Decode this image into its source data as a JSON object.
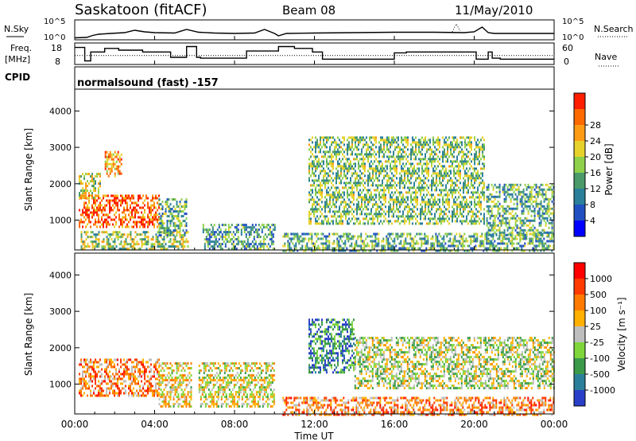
{
  "header": {
    "station": "Saskatoon (fitACF)",
    "beam": "Beam 08",
    "date": "11/May/2010",
    "cpid_label": "CPID",
    "cpid_value": "normalsound (fast) -157"
  },
  "chart_data": [
    {
      "name": "noise-panel",
      "type": "line",
      "left_label": "N.Sky",
      "right_label": "N.Search",
      "left_ticks": [
        "10^5",
        "10^0"
      ],
      "right_ticks": [
        "10^5",
        "10^0"
      ],
      "series": [
        {
          "name": "N.Sky",
          "style": "solid",
          "x": [
            0.0,
            0.6,
            0.9,
            1.2,
            1.8,
            2.5,
            3.0,
            3.5,
            4.0,
            5.0,
            5.6,
            6.2,
            7.0,
            8.0,
            9.0,
            9.5,
            10.0,
            10.2,
            10.6,
            12.0,
            14.0,
            16.0,
            18.0,
            19.5,
            20.0,
            20.4,
            20.7,
            21.0,
            22.0,
            24.0
          ],
          "y": [
            0.5,
            0.6,
            1.1,
            1.4,
            1.6,
            1.8,
            2.4,
            2.0,
            1.8,
            1.7,
            2.6,
            1.9,
            1.7,
            1.6,
            1.7,
            2.6,
            1.6,
            1.0,
            1.6,
            1.7,
            1.8,
            1.9,
            1.9,
            1.8,
            2.0,
            3.2,
            1.8,
            1.6,
            1.6,
            1.6
          ]
        },
        {
          "name": "N.Search",
          "style": "dotted",
          "x": [
            18.9,
            19.1,
            19.3
          ],
          "y": [
            2.0,
            4.0,
            2.2
          ]
        }
      ]
    },
    {
      "name": "frequency-panel",
      "type": "line",
      "left_label": "Freq.",
      "left_unit": "[MHz]",
      "right_label": "Nave",
      "left_ticks": [
        "18",
        "8"
      ],
      "right_ticks": [
        "60",
        "0"
      ],
      "ylim": [
        8,
        18
      ],
      "series": [
        {
          "name": "Freq",
          "style": "solid",
          "x": [
            0.0,
            0.5,
            0.5,
            0.8,
            0.8,
            1.5,
            1.5,
            2.2,
            2.2,
            3.4,
            3.4,
            4.8,
            4.8,
            5.6,
            5.6,
            6.1,
            6.1,
            6.3,
            6.3,
            8.6,
            8.6,
            10.2,
            10.2,
            11.0,
            11.0,
            11.9,
            11.9,
            12.4,
            12.4,
            16.0,
            16.0,
            16.6,
            16.6,
            20.1,
            20.1,
            20.7,
            20.7,
            20.9,
            20.9,
            21.3,
            21.3,
            24.0
          ],
          "y": [
            16.5,
            16.5,
            9.0,
            9.0,
            14.0,
            14.0,
            16.0,
            16.0,
            15.0,
            15.0,
            14.0,
            14.0,
            11.0,
            11.0,
            17.0,
            17.0,
            11.0,
            11.0,
            10.5,
            10.5,
            14.5,
            14.5,
            17.0,
            17.0,
            16.0,
            16.0,
            14.0,
            14.0,
            10.0,
            10.0,
            13.5,
            13.5,
            14.0,
            14.0,
            10.0,
            10.0,
            14.0,
            14.0,
            10.5,
            10.5,
            10.0,
            10.0
          ]
        },
        {
          "name": "Nave",
          "style": "dotted",
          "x": [
            0.0,
            24.0
          ],
          "y": [
            12.0,
            12.0
          ]
        }
      ]
    },
    {
      "name": "power-panel",
      "type": "heatmap",
      "ylabel": "Slant Range [km]",
      "yticks": [
        "1000",
        "2000",
        "3000",
        "4000"
      ],
      "ylim": [
        180,
        4600
      ],
      "colorbar": {
        "label": "Power [dB]",
        "ticks": [
          "4",
          "8",
          "12",
          "16",
          "20",
          "24",
          "28"
        ],
        "colors": [
          "#0000ff",
          "#1f4fc0",
          "#2a7f9a",
          "#4a9a6a",
          "#8fd14b",
          "#e6d22a",
          "#ff9c14",
          "#ff6a00",
          "#ff1f00"
        ]
      },
      "regions": [
        {
          "x": [
            0.2,
            4.2
          ],
          "r": [
            800,
            1700
          ],
          "level": 0.85
        },
        {
          "x": [
            0.2,
            1.3
          ],
          "r": [
            1600,
            2300
          ],
          "level": 0.55
        },
        {
          "x": [
            1.5,
            2.3
          ],
          "r": [
            2200,
            2900
          ],
          "level": 0.75
        },
        {
          "x": [
            0.3,
            5.7
          ],
          "r": [
            180,
            700
          ],
          "level": 0.5
        },
        {
          "x": [
            4.2,
            5.6
          ],
          "r": [
            600,
            1600
          ],
          "level": 0.4
        },
        {
          "x": [
            6.4,
            10.0
          ],
          "r": [
            180,
            900
          ],
          "level": 0.35
        },
        {
          "x": [
            10.4,
            24.0
          ],
          "r": [
            180,
            650
          ],
          "level": 0.4
        },
        {
          "x": [
            11.7,
            20.5
          ],
          "r": [
            900,
            3300
          ],
          "level": 0.45
        },
        {
          "x": [
            20.6,
            24.0
          ],
          "r": [
            600,
            2000
          ],
          "level": 0.4
        }
      ]
    },
    {
      "name": "velocity-panel",
      "type": "heatmap",
      "ylabel": "Slant Range [km]",
      "yticks": [
        "1000",
        "2000",
        "3000",
        "4000"
      ],
      "ylim": [
        180,
        4600
      ],
      "colorbar": {
        "label": "Velocity [m s⁻¹]",
        "ticks": [
          "1000",
          "500",
          "100",
          "25",
          "-25",
          "-100",
          "-500",
          "-1000"
        ],
        "colors": [
          "#2a3fc8",
          "#2a7f9a",
          "#3a9a4a",
          "#7ed63a",
          "#bebebe",
          "#ffb000",
          "#ff7a00",
          "#ff3a00",
          "#ff0000"
        ]
      },
      "regions": [
        {
          "x": [
            0.2,
            4.2
          ],
          "r": [
            700,
            1700
          ],
          "level": 0.7
        },
        {
          "x": [
            4.2,
            5.8
          ],
          "r": [
            400,
            1600
          ],
          "level": 0.55
        },
        {
          "x": [
            6.2,
            10.0
          ],
          "r": [
            400,
            1600
          ],
          "level": 0.5
        },
        {
          "x": [
            10.4,
            24.0
          ],
          "r": [
            180,
            650
          ],
          "level": 0.7
        },
        {
          "x": [
            11.7,
            14.0
          ],
          "r": [
            1300,
            2800
          ],
          "level": 0.2
        },
        {
          "x": [
            14.0,
            24.0
          ],
          "r": [
            900,
            2300
          ],
          "level": 0.45
        }
      ]
    }
  ],
  "time_axis": {
    "label": "Time UT",
    "xlim": [
      0,
      24
    ],
    "tick_hours": [
      0,
      4,
      8,
      12,
      16,
      20,
      24
    ],
    "tick_labels": [
      "00:00",
      "04:00",
      "08:00",
      "12:00",
      "16:00",
      "20:00",
      "00:00"
    ]
  }
}
